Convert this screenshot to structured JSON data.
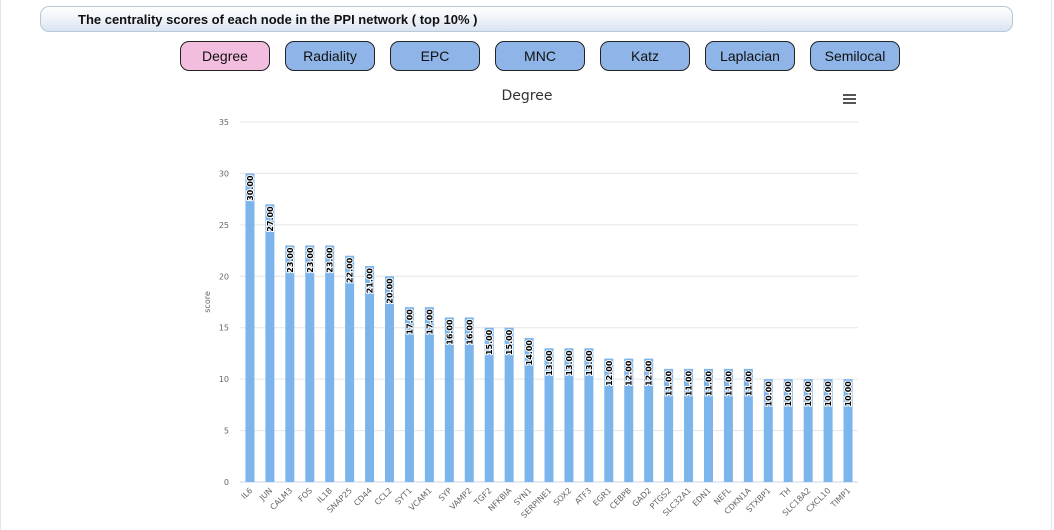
{
  "header": {
    "title": "The centrality scores of each node in the PPI network ( top 10% )"
  },
  "tabs": [
    {
      "label": "Degree",
      "active": true
    },
    {
      "label": "Radiality",
      "active": false
    },
    {
      "label": "EPC",
      "active": false
    },
    {
      "label": "MNC",
      "active": false
    },
    {
      "label": "Katz",
      "active": false
    },
    {
      "label": "Laplacian",
      "active": false
    },
    {
      "label": "Semilocal",
      "active": false
    }
  ],
  "menu_icon": "hamburger-menu-icon",
  "colors": {
    "bar": "#7cb5ec",
    "active_tab": "#f2bddf",
    "tab": "#8fb5e8"
  },
  "chart_data": {
    "type": "bar",
    "title": "Degree",
    "xlabel": "",
    "ylabel": "score",
    "ylim": [
      0,
      35
    ],
    "yticks": [
      0,
      5,
      10,
      15,
      20,
      25,
      30,
      35
    ],
    "grid": true,
    "categories": [
      "IL6",
      "JUN",
      "CALM3",
      "FOS",
      "IL1B",
      "SNAP25",
      "CD44",
      "CCL2",
      "SYT1",
      "VCAM1",
      "SYP",
      "VAMP2",
      "TGF2",
      "NFKBIA",
      "SYN1",
      "SERPINE1",
      "SOX2",
      "ATF3",
      "EGR1",
      "CEBPB",
      "GAD2",
      "PTGS2",
      "SLC32A1",
      "EDN1",
      "NEFL",
      "CDKN1A",
      "STXBP1",
      "TH",
      "SLC18A2",
      "CXCL10",
      "TIMP1"
    ],
    "values": [
      30,
      27,
      23,
      23,
      23,
      22,
      21,
      20,
      17,
      17,
      16,
      16,
      15,
      15,
      14,
      13,
      13,
      13,
      12,
      12,
      12,
      11,
      11,
      11,
      11,
      11,
      10,
      10,
      10,
      10,
      10
    ],
    "labels": [
      "30.00",
      "27.00",
      "23.00",
      "23.00",
      "23.00",
      "22.00",
      "21.00",
      "20.00",
      "17.00",
      "17.00",
      "16.00",
      "16.00",
      "15.00",
      "15.00",
      "14.00",
      "13.00",
      "13.00",
      "13.00",
      "12.00",
      "12.00",
      "12.00",
      "11.00",
      "11.00",
      "11.00",
      "11.00",
      "11.00",
      "10.00",
      "10.00",
      "10.00",
      "10.00",
      "10.00"
    ]
  }
}
